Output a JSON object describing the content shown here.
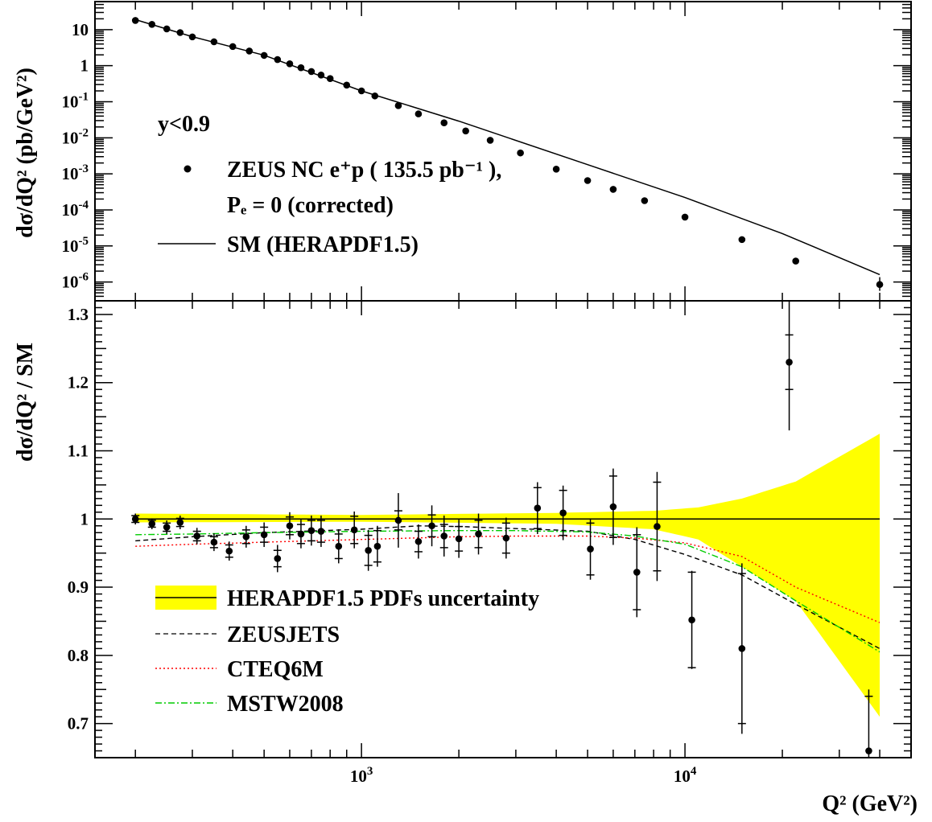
{
  "chart_data": [
    {
      "type": "scatter",
      "panel": "top",
      "ylabel": "dσ/dQ² (pb/GeV²)",
      "yscale": "log",
      "xscale": "log",
      "xlim": [
        150,
        50000
      ],
      "ylim": [
        3e-07,
        60
      ],
      "ytick_values": [
        1e-06,
        1e-05,
        0.0001,
        0.001,
        0.01,
        0.1,
        1,
        10
      ],
      "yticks": [
        {
          "base": "10",
          "exp": "-6"
        },
        {
          "base": "10",
          "exp": "-5"
        },
        {
          "base": "10",
          "exp": "-4"
        },
        {
          "base": "10",
          "exp": "-3"
        },
        {
          "base": "10",
          "exp": "-2"
        },
        {
          "base": "10",
          "exp": "-1"
        },
        {
          "base": "1",
          "exp": ""
        },
        {
          "base": "10",
          "exp": ""
        }
      ],
      "annotation": "y<0.9",
      "legend": {
        "data_label": "ZEUS NC e⁺p ( 135.5 pb⁻¹ ),",
        "data_label_line2": "Pₑ = 0 (corrected)",
        "line_label": "SM (HERAPDF1.5)"
      },
      "series": [
        {
          "name": "ZEUS NC e⁺p ( 135.5 pb⁻¹ ), Pₑ = 0 (corrected)",
          "style": "points",
          "color": "#000000",
          "x": [
            200,
            225,
            250,
            275,
            300,
            350,
            400,
            450,
            500,
            550,
            600,
            650,
            700,
            750,
            800,
            900,
            1000,
            1100,
            1300,
            1500,
            1800,
            2100,
            2500,
            3100,
            4000,
            5000,
            6000,
            7500,
            10000,
            15000,
            22000,
            40000
          ],
          "y": [
            18.0,
            14.0,
            10.5,
            8.3,
            6.3,
            4.6,
            3.4,
            2.55,
            1.93,
            1.48,
            1.13,
            0.88,
            0.69,
            0.55,
            0.44,
            0.29,
            0.2,
            0.145,
            0.078,
            0.046,
            0.026,
            0.0155,
            0.0085,
            0.0038,
            0.00135,
            0.00065,
            0.00037,
            0.00018,
            6.3e-05,
            1.5e-05,
            3.8e-06,
            8.5e-07
          ]
        },
        {
          "name": "SM (HERAPDF1.5)",
          "style": "line",
          "color": "#000000",
          "x": [
            200,
            300,
            500,
            1000,
            2000,
            5000,
            10000,
            20000,
            40000
          ],
          "y": [
            19.0,
            6.4,
            1.95,
            0.2,
            0.029,
            0.0018,
            0.00022,
            2.2e-05,
            1.6e-06
          ]
        }
      ]
    },
    {
      "type": "scatter",
      "panel": "bottom",
      "ylabel": "dσ/dQ² / SM",
      "xlabel": "Q² (GeV²)",
      "xscale": "log",
      "xlim": [
        150,
        50000
      ],
      "ylim": [
        0.65,
        1.32
      ],
      "yticks": [
        "0.7",
        "0.8",
        "0.9",
        "1",
        "1.1",
        "1.2",
        "1.3"
      ],
      "xticks": [
        {
          "base": "10",
          "exp": "3"
        },
        {
          "base": "10",
          "exp": "4"
        }
      ],
      "xtick_values": [
        1000,
        10000
      ],
      "legend": [
        "HERAPDF1.5 PDFs uncertainty",
        "ZEUSJETS",
        "CTEQ6M",
        "MSTW2008"
      ],
      "band": {
        "name": "HERAPDF1.5 PDFs uncertainty",
        "color": "#ffff00",
        "x": [
          200,
          1000,
          4000,
          8000,
          11000,
          15000,
          22000,
          40000
        ],
        "lower": [
          0.995,
          0.996,
          0.993,
          0.985,
          0.97,
          0.93,
          0.88,
          0.71
        ],
        "upper": [
          1.008,
          1.006,
          1.009,
          1.012,
          1.017,
          1.03,
          1.055,
          1.125
        ]
      },
      "series": [
        {
          "name": "HERAPDF1.5 PDFs uncertainty",
          "style": "line",
          "color": "#000000",
          "x": [
            200,
            40000
          ],
          "y": [
            1.0,
            1.0
          ]
        },
        {
          "name": "ZEUSJETS",
          "style": "dashed",
          "color": "#000000",
          "x": [
            200,
            300,
            500,
            1000,
            1500,
            2000,
            3000,
            5000,
            7000,
            10000,
            15000,
            22000,
            40000
          ],
          "y": [
            0.968,
            0.974,
            0.98,
            0.985,
            0.99,
            0.989,
            0.986,
            0.982,
            0.97,
            0.948,
            0.918,
            0.875,
            0.81
          ]
        },
        {
          "name": "CTEQ6M",
          "style": "dotted",
          "color": "#ff0000",
          "x": [
            200,
            300,
            500,
            1000,
            2000,
            3000,
            5000,
            7000,
            10000,
            15000,
            22000,
            40000
          ],
          "y": [
            0.96,
            0.963,
            0.966,
            0.97,
            0.974,
            0.975,
            0.975,
            0.972,
            0.965,
            0.945,
            0.9,
            0.848
          ]
        },
        {
          "name": "MSTW2008",
          "style": "dashdot",
          "color": "#00cc00",
          "x": [
            200,
            300,
            500,
            1000,
            2000,
            3000,
            5000,
            7000,
            10000,
            15000,
            22000,
            40000
          ],
          "y": [
            0.977,
            0.978,
            0.98,
            0.982,
            0.983,
            0.983,
            0.981,
            0.975,
            0.963,
            0.93,
            0.88,
            0.805
          ]
        },
        {
          "name": "ZEUS NC e⁺p data / SM",
          "style": "points",
          "color": "#000000",
          "x": [
            200,
            225,
            250,
            275,
            310,
            350,
            390,
            440,
            500,
            550,
            600,
            650,
            700,
            750,
            850,
            950,
            1050,
            1120,
            1300,
            1500,
            1650,
            1800,
            2000,
            2300,
            2800,
            3500,
            4200,
            5100,
            6000,
            7100,
            8200,
            10500,
            15000,
            21000,
            37000
          ],
          "y": [
            1.0,
            0.993,
            0.988,
            0.995,
            0.975,
            0.966,
            0.953,
            0.974,
            0.977,
            0.942,
            0.99,
            0.978,
            0.983,
            0.982,
            0.96,
            0.984,
            0.954,
            0.96,
            0.998,
            0.967,
            0.99,
            0.975,
            0.971,
            0.978,
            0.972,
            1.016,
            1.009,
            0.956,
            1.018,
            0.922,
            0.989,
            0.852,
            0.81,
            1.23,
            0.66
          ],
          "err_stat": [
            0.005,
            0.005,
            0.006,
            0.006,
            0.007,
            0.008,
            0.009,
            0.01,
            0.011,
            0.012,
            0.013,
            0.014,
            0.015,
            0.016,
            0.018,
            0.02,
            0.022,
            0.023,
            0.014,
            0.015,
            0.016,
            0.017,
            0.018,
            0.02,
            0.022,
            0.03,
            0.033,
            0.038,
            0.045,
            0.055,
            0.065,
            0.07,
            0.11,
            0.04,
            0.08
          ],
          "err_tot": [
            0.008,
            0.008,
            0.01,
            0.01,
            0.012,
            0.013,
            0.014,
            0.016,
            0.018,
            0.02,
            0.02,
            0.021,
            0.022,
            0.023,
            0.025,
            0.027,
            0.03,
            0.03,
            0.04,
            0.025,
            0.03,
            0.03,
            0.028,
            0.03,
            0.03,
            0.038,
            0.04,
            0.045,
            0.056,
            0.066,
            0.08,
            0.072,
            0.125,
            0.1,
            0.09
          ]
        }
      ]
    }
  ]
}
